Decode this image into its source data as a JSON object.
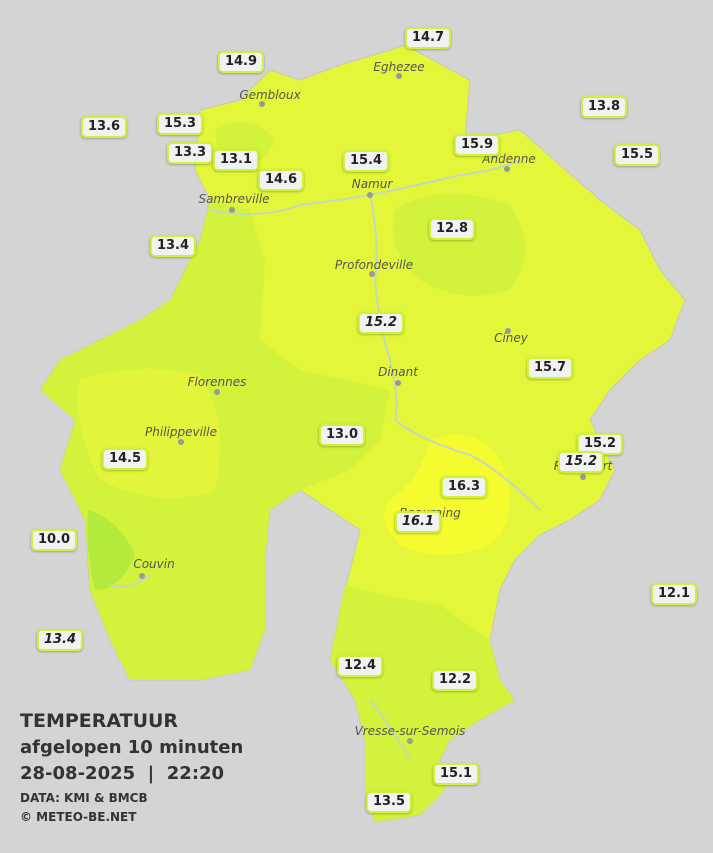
{
  "header": {
    "title": "TEMPERATUUR",
    "subtitle": "afgelopen 10 minuten",
    "datetime": "28-08-2025  |  22:20",
    "source": "DATA: KMI & BMCB",
    "credit": "© METEO-BE.NET"
  },
  "cities": [
    "Eghezee",
    "Gembloux",
    "Andenne",
    "Namur",
    "Sambreville",
    "Profondeville",
    "Ciney",
    "Dinant",
    "Florennes",
    "Philippeville",
    "Rochefort",
    "Beauraing",
    "Couvin",
    "Vresse-sur-Semois"
  ],
  "stations": [
    {
      "label": "14.7"
    },
    {
      "label": "14.9"
    },
    {
      "label": "13.8"
    },
    {
      "label": "13.6"
    },
    {
      "label": "15.3"
    },
    {
      "label": "15.9"
    },
    {
      "label": "15.5"
    },
    {
      "label": "13.3"
    },
    {
      "label": "13.1"
    },
    {
      "label": "15.4"
    },
    {
      "label": "14.6"
    },
    {
      "label": "12.8"
    },
    {
      "label": "13.4"
    },
    {
      "label": "15.2",
      "style": "italic"
    },
    {
      "label": "15.7"
    },
    {
      "label": "13.0"
    },
    {
      "label": "15.2"
    },
    {
      "label": "15.2",
      "style": "italic"
    },
    {
      "label": "14.5"
    },
    {
      "label": "16.3"
    },
    {
      "label": "16.1",
      "style": "italic"
    },
    {
      "label": "10.0"
    },
    {
      "label": "12.1"
    },
    {
      "label": "13.4",
      "style": "italic"
    },
    {
      "label": "12.4"
    },
    {
      "label": "12.2"
    },
    {
      "label": "15.1"
    },
    {
      "label": "13.5"
    }
  ]
}
